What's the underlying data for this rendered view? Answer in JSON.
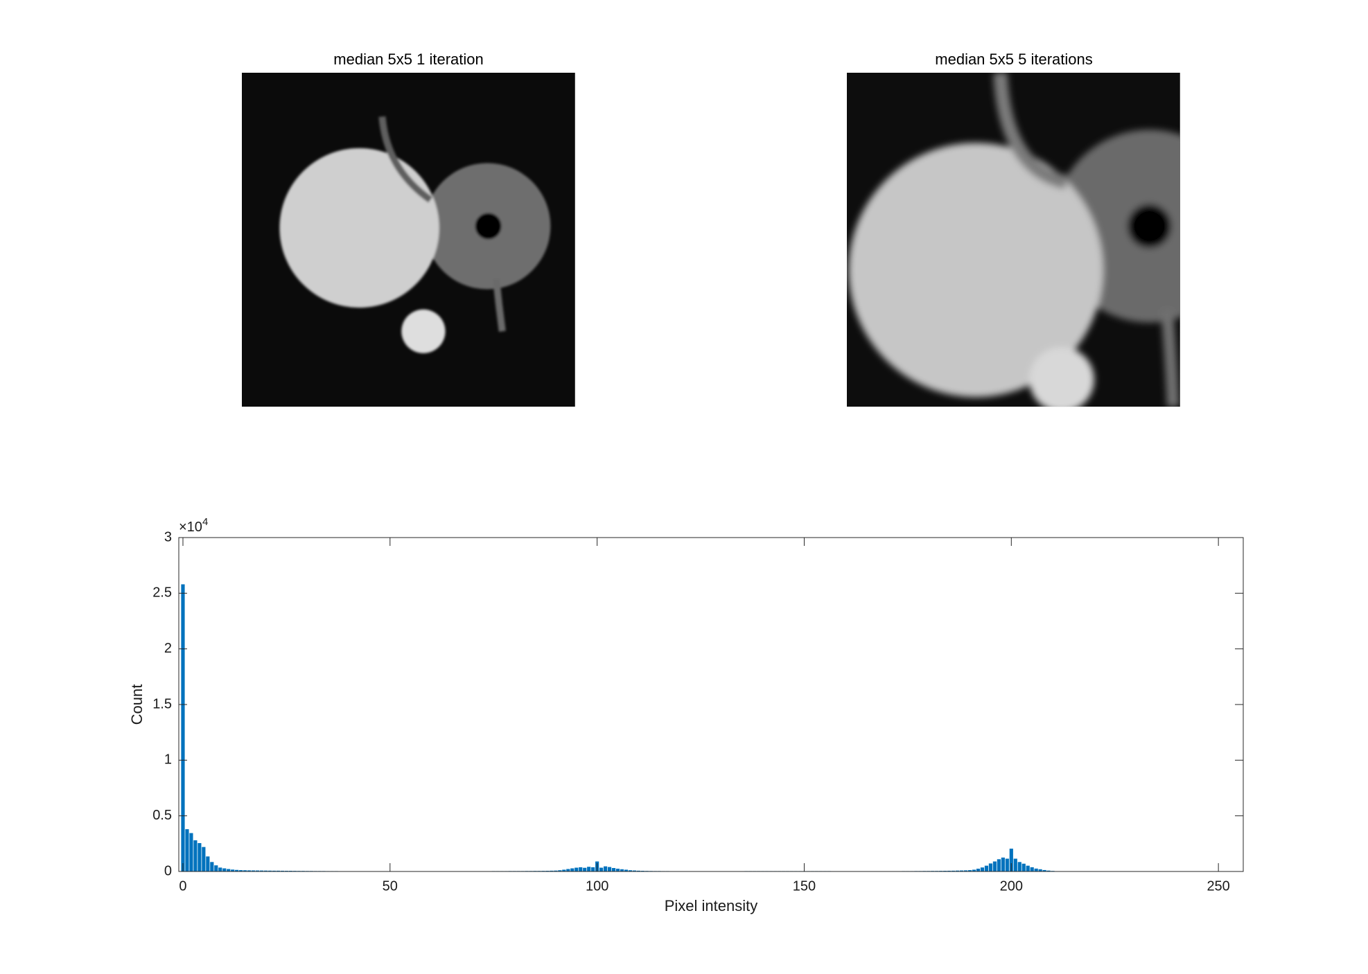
{
  "chart_data": [
    {
      "type": "image",
      "title": "median 5x5 1 iteration"
    },
    {
      "type": "image",
      "title": "median 5x5 5 iterations"
    },
    {
      "type": "histogram",
      "xlabel": "Pixel intensity",
      "ylabel": "Count",
      "color": "#0072bd",
      "y_exponent": {
        "base": "×10",
        "power": "4"
      },
      "xlim": [
        -1,
        256
      ],
      "ylim": [
        0,
        30000
      ],
      "xticks": [
        0,
        50,
        100,
        150,
        200,
        250
      ],
      "yticks": [
        0,
        {
          "value": 5000,
          "label": "0.5"
        },
        {
          "value": 10000,
          "label": "1"
        },
        {
          "value": 15000,
          "label": "1.5"
        },
        {
          "value": 20000,
          "label": "2"
        },
        {
          "value": 25000,
          "label": "2.5"
        },
        {
          "value": 30000,
          "label": "3"
        }
      ],
      "bins": [
        -0.5,
        0.5,
        1.5,
        2.5,
        3.5,
        4.5,
        5.5,
        6.5,
        7.5,
        8.5,
        9.5,
        10.5,
        11.5,
        12.5,
        13.5,
        14.5,
        15.5,
        16.5,
        17.5,
        18.5,
        19.5,
        20.5,
        21.5,
        22.5,
        23.5,
        24.5,
        25.5,
        26.5,
        27.5,
        28.5,
        29.5,
        30.5,
        31.5,
        32.5,
        33.5,
        34.5,
        35.5,
        36.5,
        37.5,
        38.5,
        39.5,
        40.5,
        41.5,
        42.5,
        43.5,
        44.5,
        45.5,
        46.5,
        47.5,
        48.5,
        49.5,
        50.5,
        51.5,
        52.5,
        53.5,
        54.5,
        55.5,
        56.5,
        57.5,
        58.5,
        59.5,
        60.5,
        61.5,
        62.5,
        63.5,
        64.5,
        65.5,
        66.5,
        67.5,
        68.5,
        69.5,
        70.5,
        71.5,
        72.5,
        73.5,
        74.5,
        75.5,
        76.5,
        77.5,
        78.5,
        79.5,
        80.5,
        81.5,
        82.5,
        83.5,
        84.5,
        85.5,
        86.5,
        87.5,
        88.5,
        89.5,
        90.5,
        91.5,
        92.5,
        93.5,
        94.5,
        95.5,
        96.5,
        97.5,
        98.5,
        99.5,
        100.5,
        101.5,
        102.5,
        103.5,
        104.5,
        105.5,
        106.5,
        107.5,
        108.5,
        109.5,
        110.5,
        111.5,
        112.5,
        113.5,
        114.5,
        115.5,
        116.5,
        117.5,
        118.5,
        119.5,
        120.5,
        121.5,
        122.5,
        123.5,
        124.5,
        125.5,
        126.5,
        127.5,
        128.5,
        129.5,
        130.5,
        131.5,
        132.5,
        133.5,
        134.5,
        135.5,
        136.5,
        137.5,
        138.5,
        139.5,
        140.5,
        141.5,
        142.5,
        143.5,
        144.5,
        145.5,
        146.5,
        147.5,
        148.5,
        149.5,
        150.5,
        151.5,
        152.5,
        153.5,
        154.5,
        155.5,
        156.5,
        157.5,
        158.5,
        159.5,
        160.5,
        161.5,
        162.5,
        163.5,
        164.5,
        165.5,
        166.5,
        167.5,
        168.5,
        169.5,
        170.5,
        171.5,
        172.5,
        173.5,
        174.5,
        175.5,
        176.5,
        177.5,
        178.5,
        179.5,
        180.5,
        181.5,
        182.5,
        183.5,
        184.5,
        185.5,
        186.5,
        187.5,
        188.5,
        189.5,
        190.5,
        191.5,
        192.5,
        193.5,
        194.5,
        195.5,
        196.5,
        197.5,
        198.5,
        199.5,
        200.5,
        201.5,
        202.5,
        203.5,
        204.5,
        205.5,
        206.5,
        207.5,
        208.5,
        209.5,
        210.5,
        211.5,
        212.5,
        213.5,
        214.5,
        215.5,
        216.5,
        217.5,
        218.5,
        219.5,
        220.5,
        221.5,
        222.5,
        223.5,
        224.5,
        225.5,
        226.5,
        227.5,
        228.5,
        229.5,
        230.5,
        231.5,
        232.5,
        233.5,
        234.5,
        235.5,
        236.5,
        237.5,
        238.5,
        239.5,
        240.5,
        241.5,
        242.5,
        243.5,
        244.5,
        245.5,
        246.5,
        247.5,
        248.5,
        249.5,
        250.5,
        251.5,
        252.5,
        253.5,
        254.5,
        255.5
      ],
      "values": [
        25800,
        3800,
        3450,
        2800,
        2550,
        2200,
        1350,
        850,
        550,
        350,
        280,
        220,
        170,
        140,
        120,
        110,
        100,
        95,
        90,
        85,
        80,
        75,
        70,
        70,
        65,
        60,
        60,
        55,
        50,
        50,
        45,
        45,
        40,
        40,
        40,
        35,
        35,
        35,
        30,
        30,
        30,
        30,
        30,
        25,
        25,
        25,
        25,
        25,
        25,
        25,
        25,
        25,
        25,
        25,
        25,
        25,
        25,
        25,
        25,
        25,
        25,
        25,
        25,
        25,
        25,
        25,
        30,
        30,
        30,
        30,
        30,
        30,
        30,
        30,
        30,
        35,
        35,
        35,
        35,
        40,
        40,
        40,
        40,
        45,
        45,
        50,
        50,
        55,
        60,
        70,
        80,
        110,
        160,
        220,
        280,
        340,
        380,
        330,
        420,
        380,
        900,
        340,
        460,
        400,
        310,
        250,
        200,
        160,
        110,
        90,
        70,
        60,
        50,
        45,
        40,
        40,
        35,
        35,
        30,
        30,
        30,
        30,
        30,
        30,
        30,
        30,
        30,
        30,
        30,
        30,
        30,
        30,
        30,
        30,
        30,
        30,
        35,
        35,
        35,
        35,
        35,
        35,
        35,
        35,
        35,
        35,
        35,
        35,
        35,
        35,
        35,
        35,
        35,
        35,
        35,
        35,
        35,
        30,
        30,
        30,
        30,
        30,
        30,
        30,
        30,
        30,
        30,
        30,
        30,
        30,
        30,
        30,
        30,
        30,
        35,
        35,
        35,
        40,
        40,
        45,
        45,
        50,
        50,
        55,
        60,
        65,
        70,
        80,
        90,
        100,
        120,
        160,
        250,
        360,
        520,
        720,
        900,
        1100,
        1250,
        1150,
        2050,
        1150,
        850,
        700,
        520,
        380,
        260,
        200,
        130,
        80,
        50,
        30,
        20,
        15,
        10,
        10,
        8,
        6,
        5,
        5,
        5,
        5,
        5,
        5,
        5,
        5,
        5,
        5,
        5,
        5,
        5,
        5,
        5,
        5,
        5,
        5,
        5,
        5,
        5,
        5,
        5,
        4,
        4,
        4,
        4,
        4,
        4,
        4,
        4,
        4,
        4,
        3,
        3,
        3,
        3,
        3
      ]
    }
  ]
}
